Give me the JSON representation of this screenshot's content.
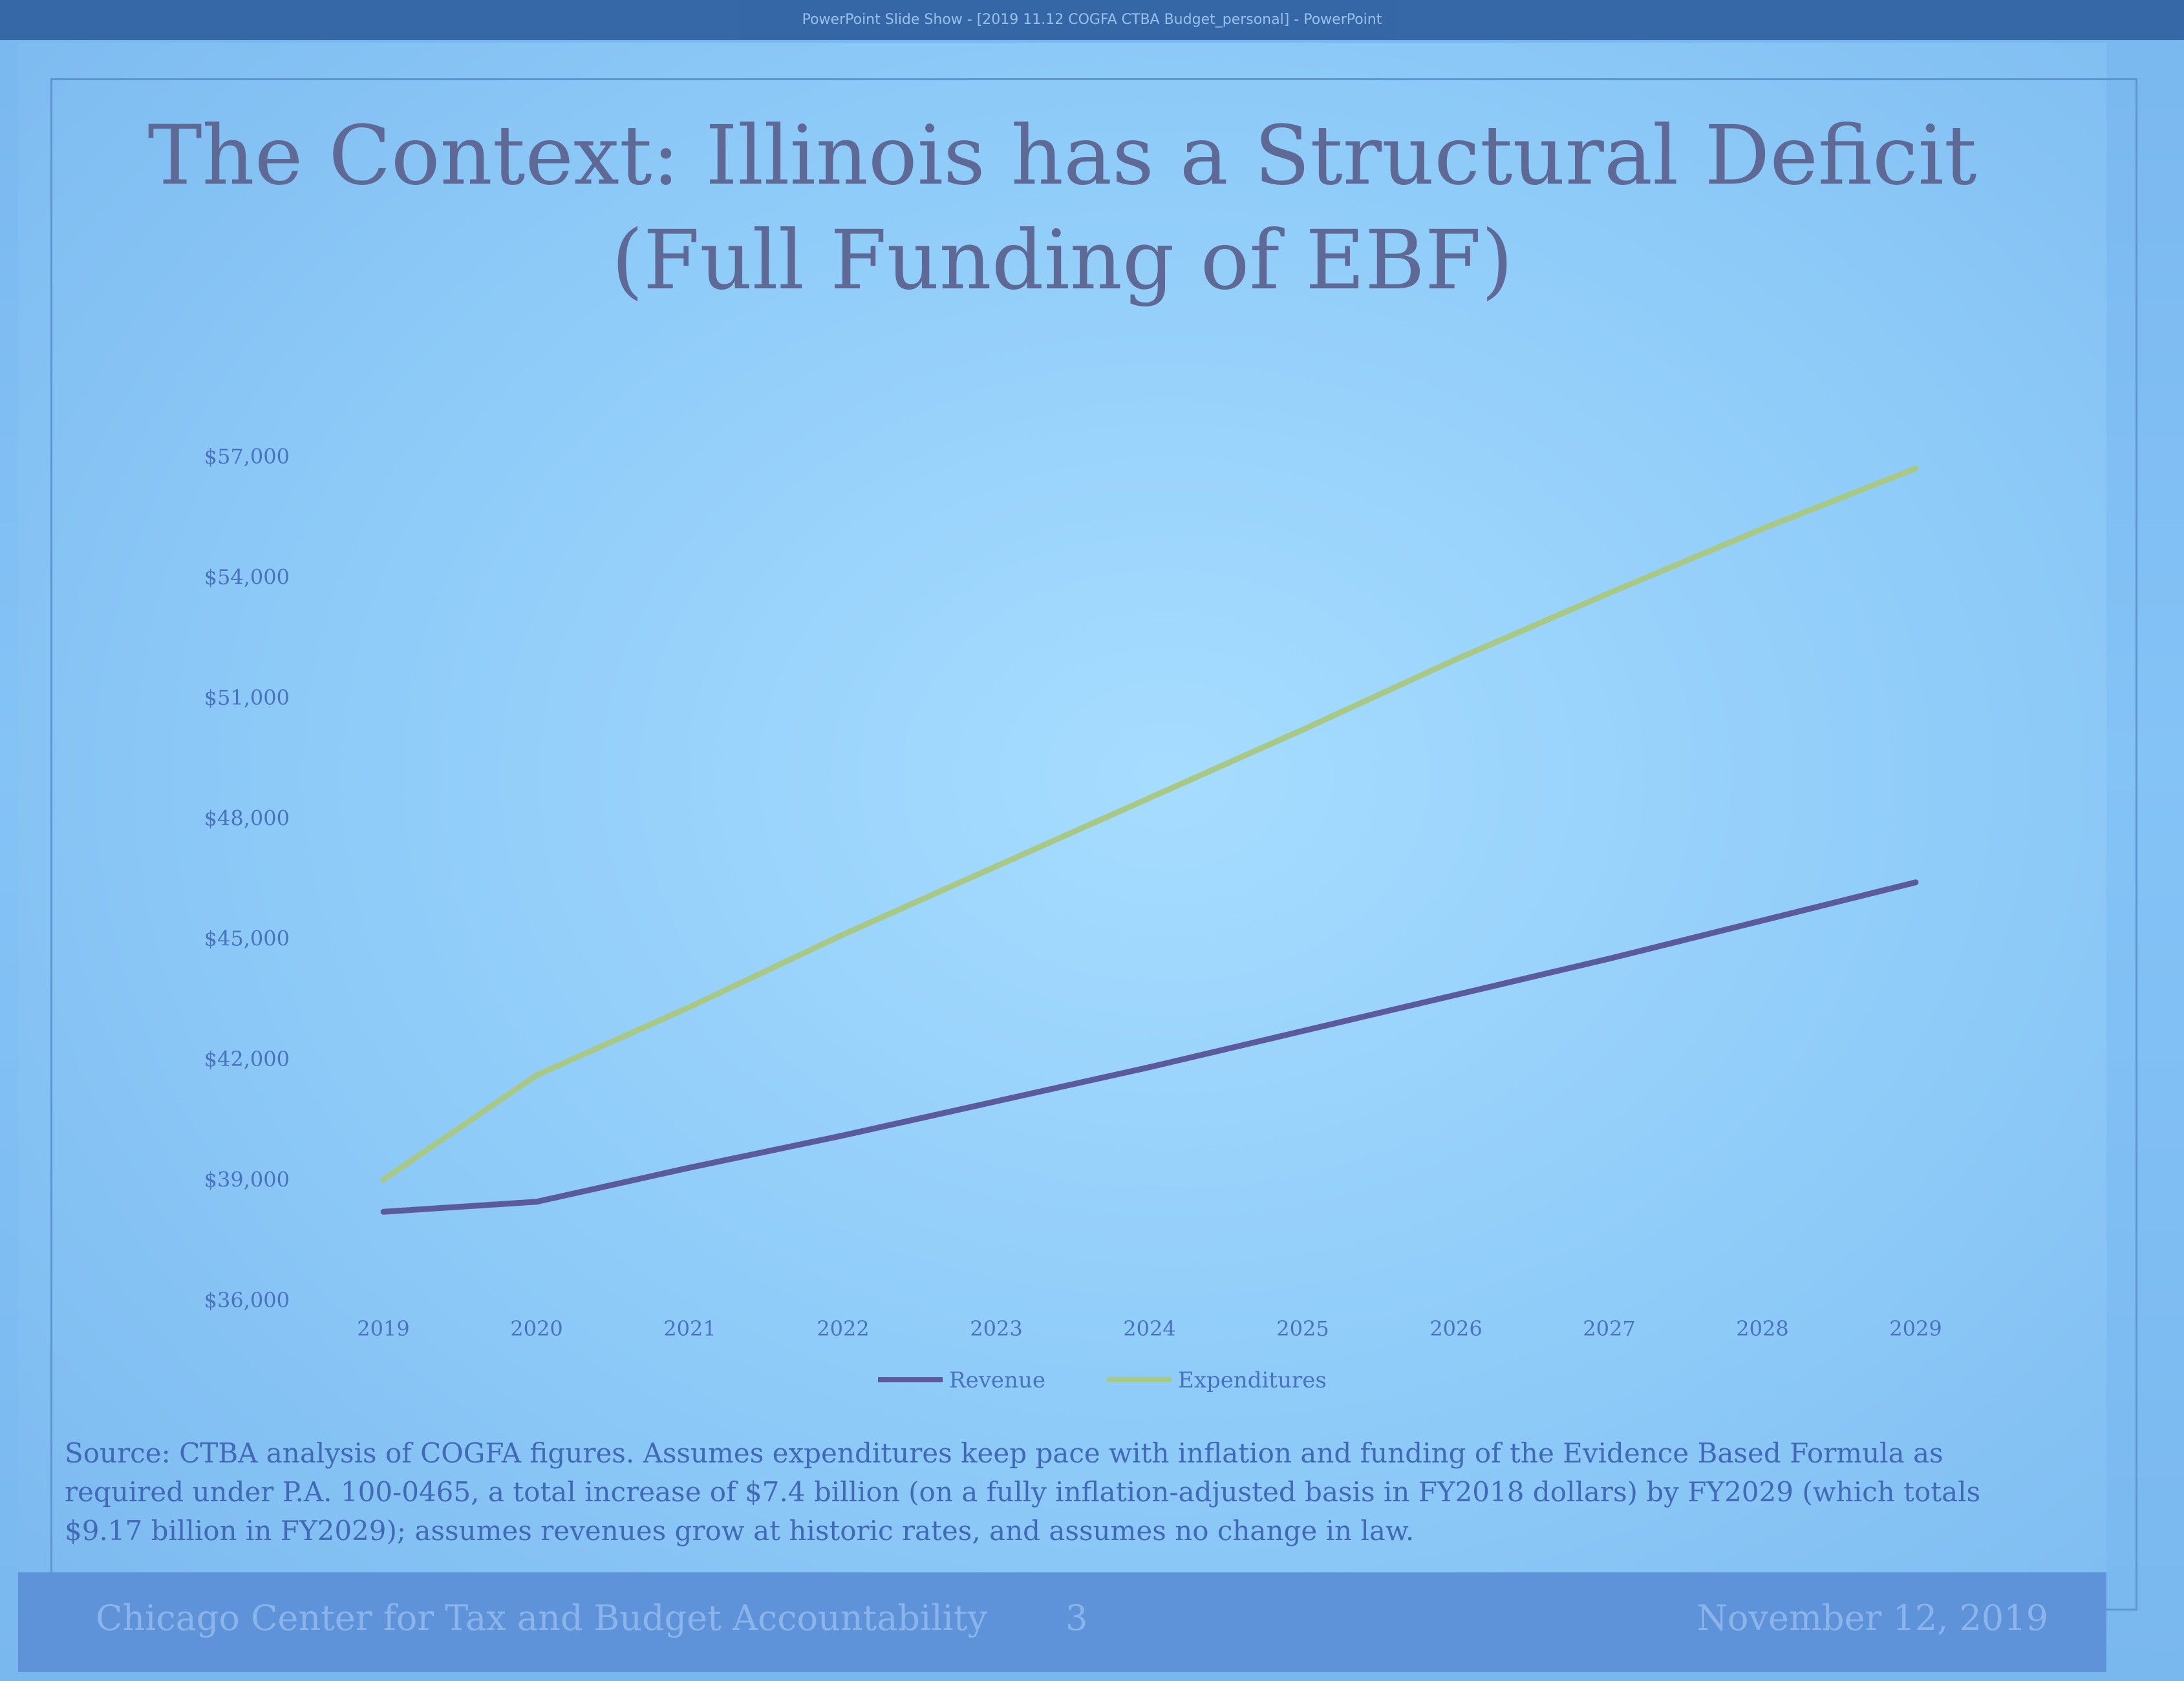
{
  "window": {
    "title": "PowerPoint Slide Show - [2019 11.12 COGFA CTBA Budget_personal] - PowerPoint"
  },
  "slide": {
    "title_line1": "The Context: Illinois has a Structural Deficit",
    "title_line2": "(Full Funding of EBF)",
    "source_note": "Source: CTBA analysis of COGFA figures. Assumes expenditures keep pace with inflation and funding of the Evidence Based Formula as required under P.A. 100-0465, a total increase of $7.4 billion (on a fully inflation-adjusted basis in FY2018 dollars) by FY2029 (which totals $9.17 billion in FY2029); assumes revenues grow at historic rates, and assumes no change in law.",
    "footer": {
      "org": "Chicago Center for Tax and Budget Accountability",
      "page": "3",
      "date": "November 12, 2019"
    }
  },
  "colors": {
    "revenue": "#5a5a9c",
    "expenditures": "#a8c986",
    "tick_text": "#4a73bd"
  },
  "chart_data": {
    "type": "line",
    "x": [
      "2019",
      "2020",
      "2021",
      "2022",
      "2023",
      "2024",
      "2025",
      "2026",
      "2027",
      "2028",
      "2029"
    ],
    "y_ticks": [
      "$36,000",
      "$39,000",
      "$42,000",
      "$45,000",
      "$48,000",
      "$51,000",
      "$54,000",
      "$57,000"
    ],
    "ylim": [
      36000,
      57000
    ],
    "grid": false,
    "legend_position": "bottom",
    "series": [
      {
        "name": "Revenue",
        "values": [
          38200,
          38450,
          39300,
          40100,
          40950,
          41800,
          42700,
          43600,
          44500,
          45450,
          46400
        ]
      },
      {
        "name": "Expenditures",
        "values": [
          39000,
          41600,
          43300,
          45100,
          46800,
          48500,
          50200,
          51950,
          53600,
          55200,
          56700
        ]
      }
    ]
  }
}
